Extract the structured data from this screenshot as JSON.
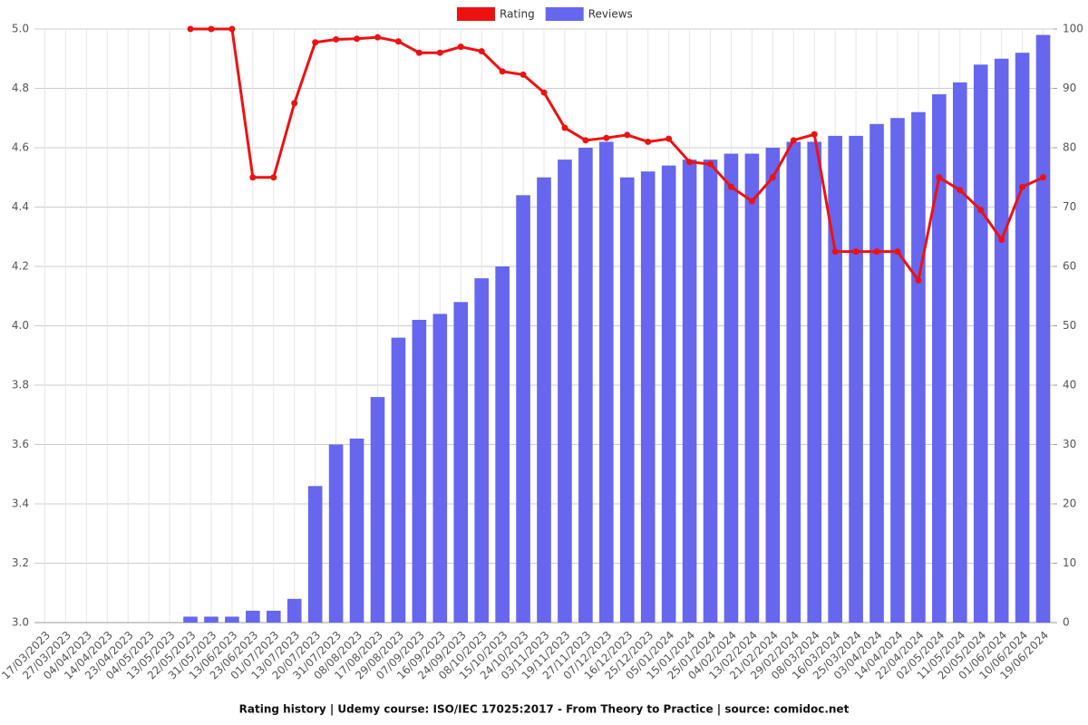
{
  "chart_data": {
    "type": "bar-line",
    "title": "Rating history | Udemy course: ISO/IEC 17025:2017 - From Theory to Practice | source: comidoc.net",
    "categories": [
      "17/03/2023",
      "27/03/2023",
      "04/04/2023",
      "14/04/2023",
      "23/04/2023",
      "04/05/2023",
      "13/05/2023",
      "22/05/2023",
      "31/05/2023",
      "13/06/2023",
      "23/06/2023",
      "01/07/2023",
      "13/07/2023",
      "20/07/2023",
      "31/07/2023",
      "08/08/2023",
      "17/08/2023",
      "29/08/2023",
      "07/09/2023",
      "16/09/2023",
      "24/09/2023",
      "08/10/2023",
      "15/10/2023",
      "24/10/2023",
      "03/11/2023",
      "19/11/2023",
      "27/11/2023",
      "07/12/2023",
      "16/12/2023",
      "25/12/2023",
      "05/01/2024",
      "15/01/2024",
      "25/01/2024",
      "04/02/2024",
      "13/02/2024",
      "21/02/2024",
      "29/02/2024",
      "08/03/2024",
      "16/03/2024",
      "25/03/2024",
      "03/04/2024",
      "14/04/2024",
      "22/04/2024",
      "02/05/2024",
      "11/05/2024",
      "20/05/2024",
      "01/06/2024",
      "10/06/2024",
      "19/06/2024"
    ],
    "series": [
      {
        "name": "Rating",
        "type": "line",
        "color": "#ee1111",
        "axis": "y",
        "values": [
          null,
          null,
          null,
          null,
          null,
          null,
          null,
          5.0,
          5.0,
          5.0,
          4.5,
          4.5,
          4.75,
          4.955,
          4.965,
          4.967,
          4.972,
          4.958,
          4.92,
          4.92,
          4.94,
          4.925,
          4.857,
          4.846,
          4.786,
          4.667,
          4.625,
          4.633,
          4.643,
          4.62,
          4.63,
          4.552,
          4.545,
          4.468,
          4.42,
          4.5,
          4.625,
          4.645,
          4.25,
          4.25,
          4.25,
          4.25,
          4.153,
          4.5,
          4.457,
          4.39,
          4.29,
          4.468,
          4.5
        ]
      },
      {
        "name": "Reviews",
        "type": "bar",
        "color": "#6666ee",
        "axis": "y2",
        "values": [
          0,
          0,
          0,
          0,
          0,
          0,
          0,
          1,
          1,
          1,
          2,
          2,
          4,
          23,
          30,
          31,
          38,
          48,
          51,
          52,
          54,
          58,
          60,
          72,
          75,
          78,
          80,
          81,
          75,
          76,
          77,
          78,
          78,
          79,
          79,
          80,
          81,
          81,
          82,
          82,
          84,
          85,
          86,
          89,
          91,
          94,
          95,
          96,
          99
        ]
      }
    ],
    "ylim": [
      3.0,
      5.0
    ],
    "yticks": [
      {
        "value": 3.0,
        "label": "3.0"
      },
      {
        "value": 3.2,
        "label": "3.2"
      },
      {
        "value": 3.4,
        "label": "3.4"
      },
      {
        "value": 3.6,
        "label": "3.6"
      },
      {
        "value": 3.8,
        "label": "3.8"
      },
      {
        "value": 4.0,
        "label": "4.0"
      },
      {
        "value": 4.2,
        "label": "4.2"
      },
      {
        "value": 4.4,
        "label": "4.4"
      },
      {
        "value": 4.6,
        "label": "4.6"
      },
      {
        "value": 4.8,
        "label": "4.8"
      },
      {
        "value": 5.0,
        "label": "5.0"
      }
    ],
    "y2lim": [
      0,
      100
    ],
    "y2ticks": [
      0,
      10,
      20,
      30,
      40,
      50,
      60,
      70,
      80,
      90,
      100
    ],
    "grid": true,
    "legend": "top"
  }
}
